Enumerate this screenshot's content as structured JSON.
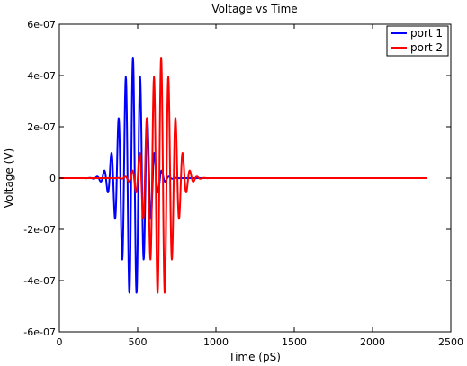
{
  "chart_data": {
    "type": "line",
    "title": "Voltage vs Time",
    "xlabel": "Time (pS)",
    "ylabel": "Voltage (V)",
    "xlim": [
      0,
      2500
    ],
    "ylim": [
      -6e-07,
      6e-07
    ],
    "x_ticks": [
      0,
      500,
      1000,
      1500,
      2000,
      2500
    ],
    "x_tick_labels": [
      "0",
      "500",
      "1000",
      "1500",
      "2000",
      "2500"
    ],
    "y_ticks": [
      -6e-07,
      -4e-07,
      -2e-07,
      0,
      2e-07,
      4e-07,
      6e-07
    ],
    "y_tick_labels": [
      "-6e-07",
      "-4e-07",
      "-2e-07",
      "0",
      "2e-07",
      "4e-07",
      "6e-07"
    ],
    "grid": false,
    "legend_position": "top-right",
    "series": [
      {
        "name": "port 1",
        "color": "#0000ff",
        "x_range": [
          0,
          2350
        ],
        "signal": "gaussian-modulated sinusoid",
        "center_ps": 470,
        "width_ps": 110,
        "period_ps": 46,
        "peak_amplitude": 4.7e-07
      },
      {
        "name": "port 2",
        "color": "#ff0000",
        "x_range": [
          0,
          2350
        ],
        "signal": "gaussian-modulated sinusoid",
        "center_ps": 650,
        "width_ps": 110,
        "period_ps": 46,
        "peak_amplitude": 4.7e-07
      }
    ]
  }
}
